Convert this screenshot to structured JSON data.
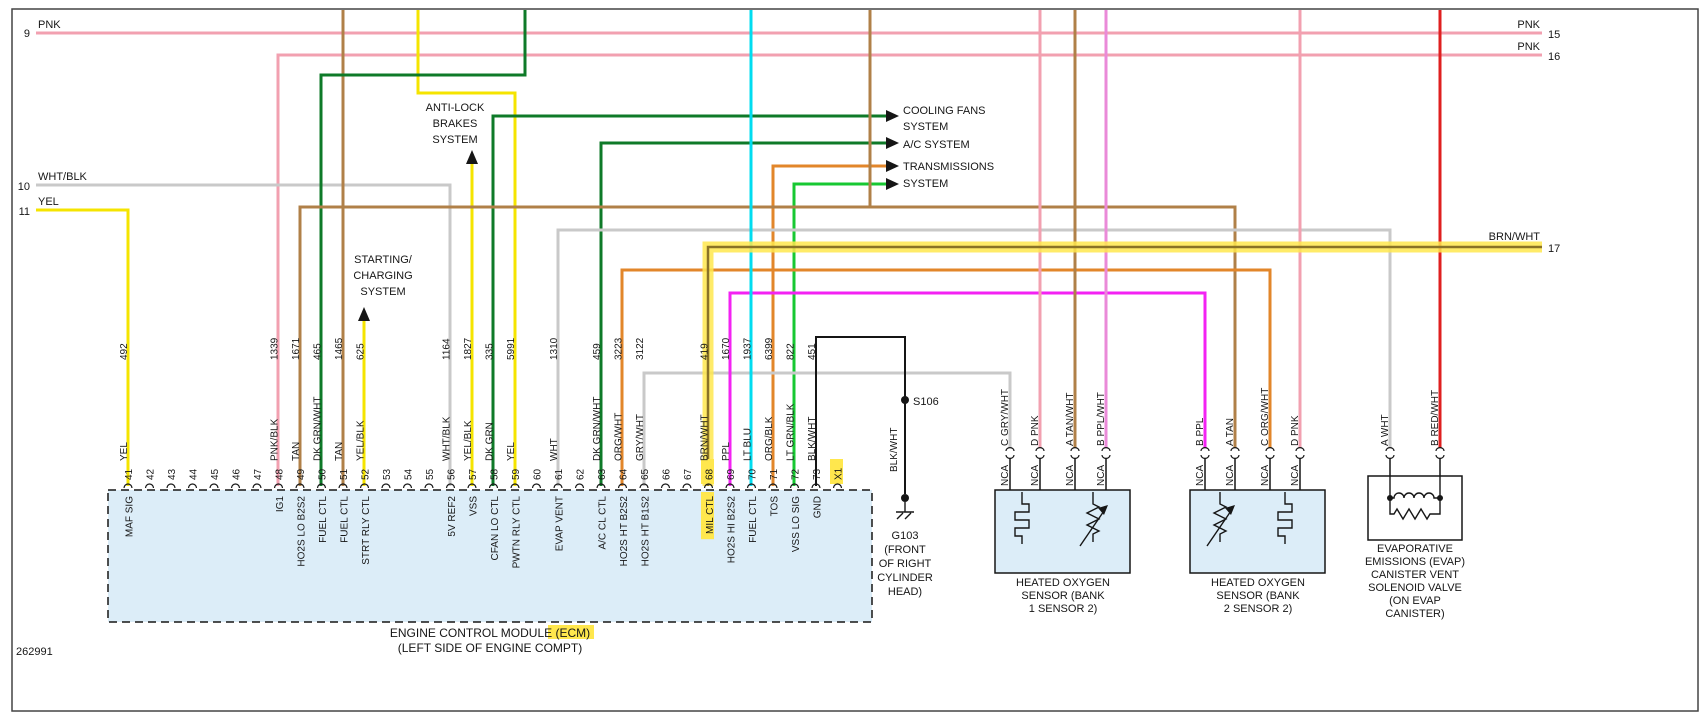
{
  "page": {
    "figure_number": "262991"
  },
  "refs": {
    "left": [
      {
        "num": "9",
        "color": "PNK"
      },
      {
        "num": "10",
        "color": "WHT/BLK"
      },
      {
        "num": "11",
        "color": "YEL"
      }
    ],
    "right": [
      {
        "num": "15",
        "color": "PNK"
      },
      {
        "num": "16",
        "color": "PNK"
      },
      {
        "num": "17",
        "color": "BRN/WHT"
      }
    ]
  },
  "systems": {
    "abs": [
      "ANTI-LOCK",
      "BRAKES",
      "SYSTEM"
    ],
    "starting": [
      "STARTING/",
      "CHARGING",
      "SYSTEM"
    ],
    "cooling": [
      "COOLING FANS",
      "SYSTEM"
    ],
    "ac": [
      "A/C SYSTEM"
    ],
    "transmission": [
      "TRANSMISSIONS",
      "SYSTEM"
    ]
  },
  "ecm": {
    "title": "ENGINE CONTROL MODULE (ECM)",
    "subtitle": "(LEFT SIDE OF ENGINE COMPT)",
    "pins": [
      {
        "num": "41",
        "label": "MAF SIG",
        "wire": "492",
        "color": "YEL"
      },
      {
        "num": "42"
      },
      {
        "num": "43"
      },
      {
        "num": "44"
      },
      {
        "num": "45"
      },
      {
        "num": "46"
      },
      {
        "num": "47"
      },
      {
        "num": "48",
        "label": "IG1",
        "wire": "1339",
        "color": "PNK/BLK"
      },
      {
        "num": "49",
        "label": "HO2S LO B2S2",
        "wire": "1671",
        "color": "TAN"
      },
      {
        "num": "50",
        "label": "FUEL CTL",
        "wire": "465",
        "color": "DK GRN/WHT"
      },
      {
        "num": "51",
        "label": "FUEL CTL",
        "wire": "1465",
        "color": "TAN"
      },
      {
        "num": "52",
        "label": "STRT RLY CTL",
        "wire": "625",
        "color": "YEL/BLK"
      },
      {
        "num": "53"
      },
      {
        "num": "54"
      },
      {
        "num": "55"
      },
      {
        "num": "56",
        "label": "5V REF2",
        "wire": "1164",
        "color": "WHT/BLK"
      },
      {
        "num": "57",
        "label": "VSS",
        "wire": "1827",
        "color": "YEL/BLK"
      },
      {
        "num": "58",
        "label": "CFAN LO CTL",
        "wire": "335",
        "color": "DK GRN"
      },
      {
        "num": "59",
        "label": "PWTN RLY CTL",
        "wire": "5991",
        "color": "YEL"
      },
      {
        "num": "60"
      },
      {
        "num": "61",
        "label": "EVAP VENT",
        "wire": "1310",
        "color": "WHT"
      },
      {
        "num": "62"
      },
      {
        "num": "63",
        "label": "A/C CL CTL",
        "wire": "459",
        "color": "DK GRN/WHT"
      },
      {
        "num": "64",
        "label": "HO2S HT B2S2",
        "wire": "3223",
        "color": "ORG/WHT"
      },
      {
        "num": "65",
        "label": "HO2S HT B1S2",
        "wire": "3122",
        "color": "GRY/WHT"
      },
      {
        "num": "66"
      },
      {
        "num": "67"
      },
      {
        "num": "68",
        "label": "MIL CTL",
        "wire": "419",
        "color": "BRN/WHT",
        "highlight": true
      },
      {
        "num": "69",
        "label": "HO2S HI B2S2",
        "wire": "1670",
        "color": "PPL"
      },
      {
        "num": "70",
        "label": "FUEL CTL",
        "wire": "1937",
        "color": "LT BLU"
      },
      {
        "num": "71",
        "label": "TOS",
        "wire": "6399",
        "color": "ORG/BLK"
      },
      {
        "num": "72",
        "label": "VSS LO SIG",
        "wire": "822",
        "color": "LT GRN/BLK"
      },
      {
        "num": "73",
        "label": "GND",
        "wire": "451",
        "color": "BLK/WHT"
      },
      {
        "num": "X1",
        "highlight": true
      }
    ]
  },
  "ground": {
    "splice": "S106",
    "wire_color": "BLK/WHT",
    "id": "G103",
    "location": [
      "(FRONT",
      "OF RIGHT",
      "CYLINDER",
      "HEAD)"
    ]
  },
  "sensors": [
    {
      "name": [
        "HEATED OXYGEN",
        "SENSOR (BANK",
        "1 SENSOR 2)"
      ],
      "pins": [
        {
          "pin": "C",
          "color": "GRY/WHT",
          "nca": "NCA"
        },
        {
          "pin": "D",
          "color": "PNK",
          "nca": "NCA"
        },
        {
          "pin": "A",
          "color": "TAN/WHT",
          "nca": "NCA"
        },
        {
          "pin": "B",
          "color": "PPL/WHT",
          "nca": "NCA"
        }
      ]
    },
    {
      "name": [
        "HEATED OXYGEN",
        "SENSOR (BANK",
        "2 SENSOR 2)"
      ],
      "pins": [
        {
          "pin": "B",
          "color": "PPL",
          "nca": "NCA"
        },
        {
          "pin": "A",
          "color": "TAN",
          "nca": "NCA"
        },
        {
          "pin": "C",
          "color": "ORG/WHT",
          "nca": "NCA"
        },
        {
          "pin": "D",
          "color": "PNK",
          "nca": "NCA"
        }
      ]
    }
  ],
  "evap": {
    "name": [
      "EVAPORATIVE",
      "EMISSIONS (EVAP)",
      "CANISTER VENT",
      "SOLENOID VALVE",
      "(ON EVAP",
      "CANISTER)"
    ],
    "pins": [
      {
        "pin": "A",
        "color": "WHT"
      },
      {
        "pin": "B",
        "color": "RED/WHT"
      }
    ]
  },
  "colors": {
    "pnk": "#f2a0b0",
    "tan": "#b08048",
    "yel": "#f5e400",
    "dk_grn": "#0e7a28",
    "lt_blu": "#00dcf0",
    "org": "#e2862a",
    "ppl": "#f322f3",
    "gry": "#c9c9c9",
    "lt_grn": "#17c832",
    "red": "#df1f1f",
    "blk": "#151515",
    "brn_wht": "#8a7326",
    "ppl_wht": "#ea8ad8",
    "highlight": "#ffe74d",
    "module_fill": "#dcedf8",
    "evap_fill": "#ffffff"
  }
}
